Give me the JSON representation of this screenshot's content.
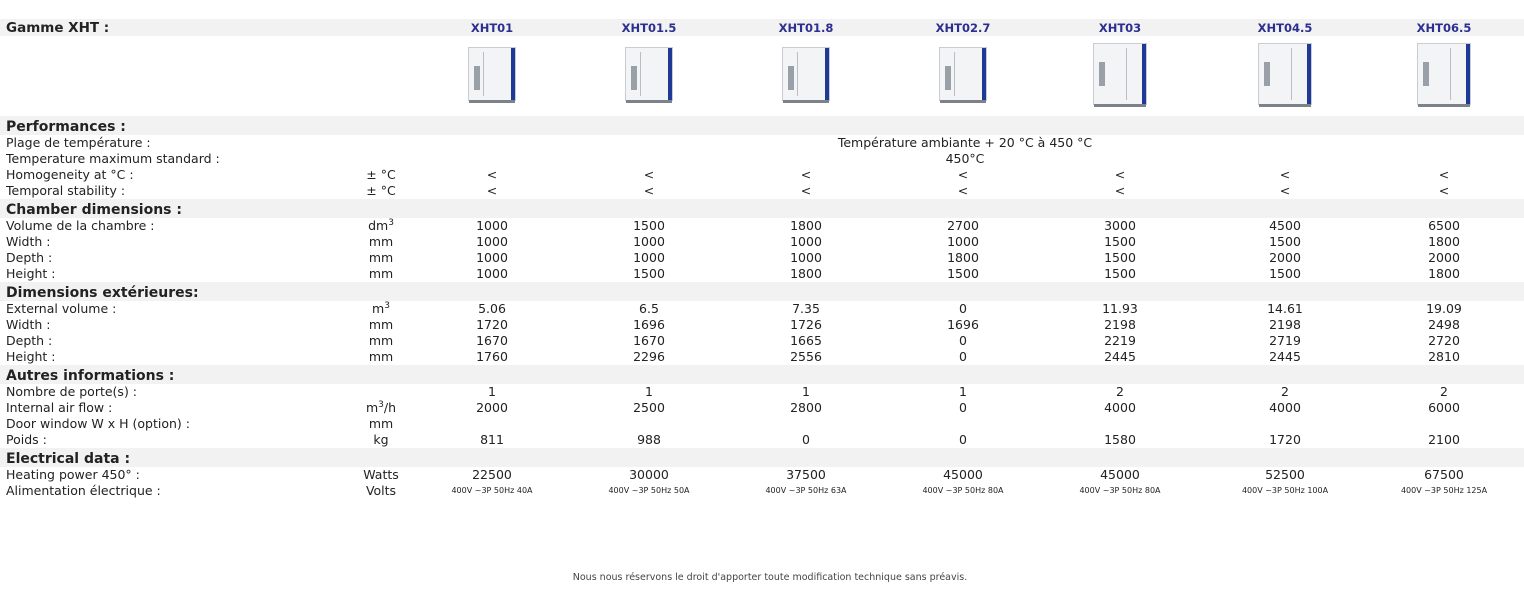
{
  "title": "Gamme XHT :",
  "models": [
    "XHT01",
    "XHT01.5",
    "XHT01.8",
    "XHT02.7",
    "XHT03",
    "XHT04.5",
    "XHT06.5"
  ],
  "oven_images": [
    {
      "doors": 1,
      "icon": "oven-single-door-icon"
    },
    {
      "doors": 1,
      "icon": "oven-single-door-icon"
    },
    {
      "doors": 1,
      "icon": "oven-single-door-icon"
    },
    {
      "doors": 1,
      "icon": "oven-single-door-icon"
    },
    {
      "doors": 2,
      "icon": "oven-double-door-icon"
    },
    {
      "doors": 2,
      "icon": "oven-double-door-icon"
    },
    {
      "doors": 2,
      "icon": "oven-double-door-icon"
    }
  ],
  "performances": {
    "title": "Performances :",
    "temp_range": {
      "label": "Plage de température :",
      "value": "Température ambiante + 20 °C à 450 °C"
    },
    "temp_max": {
      "label": "Temperature maximum standard :",
      "value": "450°C"
    },
    "homogeneity": {
      "label": "Homogeneity at °C :",
      "unit": "± °C",
      "values": [
        "<",
        "<",
        "<",
        "<",
        "<",
        "<",
        "<"
      ]
    },
    "stability": {
      "label": "Temporal stability :",
      "unit": "± °C",
      "values": [
        "<",
        "<",
        "<",
        "<",
        "<",
        "<",
        "<"
      ]
    }
  },
  "chamber": {
    "title": "Chamber dimensions :",
    "volume": {
      "label": "Volume de la chambre :",
      "unit_base": "dm",
      "unit_sup": "3",
      "values": [
        "1000",
        "1500",
        "1800",
        "2700",
        "3000",
        "4500",
        "6500"
      ]
    },
    "width": {
      "label": "Width :",
      "unit": "mm",
      "values": [
        "1000",
        "1000",
        "1000",
        "1000",
        "1500",
        "1500",
        "1800"
      ]
    },
    "depth": {
      "label": "Depth :",
      "unit": "mm",
      "values": [
        "1000",
        "1000",
        "1000",
        "1800",
        "1500",
        "2000",
        "2000"
      ]
    },
    "height": {
      "label": "Height :",
      "unit": "mm",
      "values": [
        "1000",
        "1500",
        "1800",
        "1500",
        "1500",
        "1500",
        "1800"
      ]
    }
  },
  "exterior": {
    "title": "Dimensions extérieures:",
    "volume": {
      "label": "External volume :",
      "unit_base": "m",
      "unit_sup": "3",
      "values": [
        "5.06",
        "6.5",
        "7.35",
        "0",
        "11.93",
        "14.61",
        "19.09"
      ]
    },
    "width": {
      "label": "Width :",
      "unit": "mm",
      "values": [
        "1720",
        "1696",
        "1726",
        "1696",
        "2198",
        "2198",
        "2498"
      ]
    },
    "depth": {
      "label": "Depth :",
      "unit": "mm",
      "values": [
        "1670",
        "1670",
        "1665",
        "0",
        "2219",
        "2719",
        "2720"
      ]
    },
    "height": {
      "label": "Height :",
      "unit": "mm",
      "values": [
        "1760",
        "2296",
        "2556",
        "0",
        "2445",
        "2445",
        "2810"
      ]
    }
  },
  "other": {
    "title": "Autres informations :",
    "doors": {
      "label": "Nombre de porte(s) :",
      "unit": "",
      "values": [
        "1",
        "1",
        "1",
        "1",
        "2",
        "2",
        "2"
      ]
    },
    "airflow": {
      "label": "Internal air flow :",
      "unit_base": "m",
      "unit_sup": "3",
      "unit_tail": "/h",
      "values": [
        "2000",
        "2500",
        "2800",
        "0",
        "4000",
        "4000",
        "6000"
      ]
    },
    "window": {
      "label": "Door window W x H (option) :",
      "unit": "mm",
      "values": [
        "",
        "",
        "",
        "",
        "",
        "",
        ""
      ]
    },
    "weight": {
      "label": "Poids :",
      "unit": "kg",
      "values": [
        "811",
        "988",
        "0",
        "0",
        "1580",
        "1720",
        "2100"
      ]
    }
  },
  "electrical": {
    "title": "Electrical data :",
    "power": {
      "label": "Heating power 450° :",
      "unit": "Watts",
      "values": [
        "22500",
        "30000",
        "37500",
        "45000",
        "45000",
        "52500",
        "67500"
      ]
    },
    "supply": {
      "label": "Alimentation électrique :",
      "unit": "Volts",
      "values": [
        "400V ~3P 50Hz 40A",
        "400V ~3P 50Hz 50A",
        "400V ~3P 50Hz 63A",
        "400V ~3P 50Hz 80A",
        "400V ~3P 50Hz 80A",
        "400V ~3P 50Hz 100A",
        "400V ~3P 50Hz 125A"
      ]
    }
  },
  "footer": "Nous nous réservons le droit d'apporter toute modification technique sans préavis."
}
